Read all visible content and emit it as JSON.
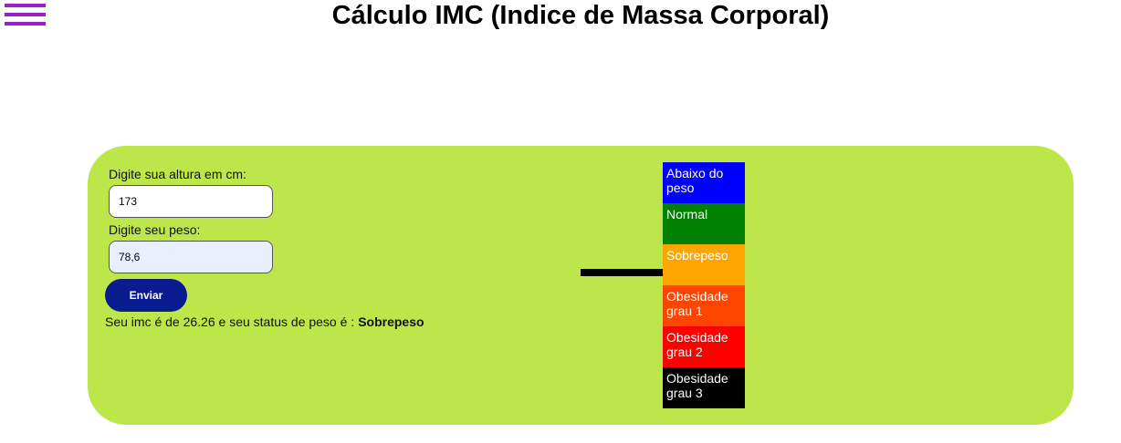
{
  "header": {
    "title": "Cálculo IMC (Indice de Massa Corporal)"
  },
  "form": {
    "height_label": "Digite sua altura em cm:",
    "height_value": "173",
    "weight_label": "Digite seu peso:",
    "weight_value": "78,6",
    "submit_label": "Enviar"
  },
  "result": {
    "text": "Seu imc é de 26.26 e seu status de peso é :",
    "status": "Sobrepeso"
  },
  "scale": {
    "items": [
      {
        "label": "Abaixo do peso",
        "color": "#0000ff"
      },
      {
        "label": "Normal",
        "color": "#008000"
      },
      {
        "label": "Sobrepeso",
        "color": "#ffa500"
      },
      {
        "label": "Obesidade grau 1",
        "color": "#ff4500"
      },
      {
        "label": "Obesidade grau 2",
        "color": "#ff0000"
      },
      {
        "label": "Obesidade grau 3",
        "color": "#000000"
      }
    ]
  },
  "colors": {
    "panel_background": "#bde64a",
    "menu_icon": "#9c1fce",
    "button_background": "#0a1a8f",
    "weight_input_background": "#e8f0fe"
  },
  "icons": {
    "menu": "hamburger-menu-icon"
  }
}
